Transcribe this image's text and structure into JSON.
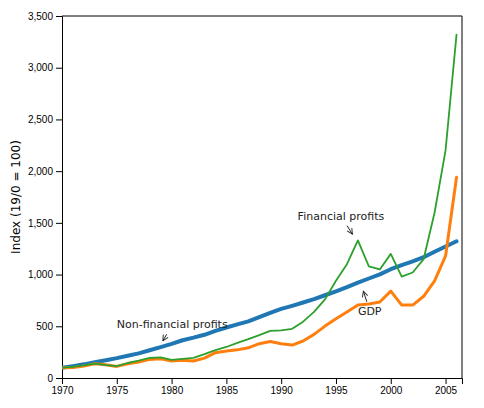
{
  "chart_data": {
    "type": "line",
    "ylabel": "Index (19/0 = 100)",
    "xlim": [
      1970,
      2006.5
    ],
    "ylim": [
      0,
      3500
    ],
    "xticks": [
      1970,
      1975,
      1980,
      1985,
      1990,
      1995,
      2000,
      2005
    ],
    "yticks": [
      0,
      500,
      {
        "value": 1000,
        "label": "1,000"
      },
      {
        "value": 1500,
        "label": "1,500"
      },
      {
        "value": 2000,
        "label": "2,000"
      },
      {
        "value": 2500,
        "label": "2,500"
      },
      {
        "value": 3000,
        "label": "3,000"
      },
      {
        "value": 3500,
        "label": "3,500"
      }
    ],
    "grid": false,
    "x": [
      1970,
      1971,
      1972,
      1973,
      1974,
      1975,
      1976,
      1977,
      1978,
      1979,
      1980,
      1981,
      1982,
      1983,
      1984,
      1985,
      1986,
      1987,
      1988,
      1989,
      1990,
      1991,
      1992,
      1993,
      1994,
      1995,
      1996,
      1997,
      1998,
      1999,
      2000,
      2001,
      2002,
      2003,
      2004,
      2005,
      2006
    ],
    "series": [
      {
        "values": [
          100,
          115,
          132,
          152,
          172,
          192,
          215,
          238,
          268,
          298,
          330,
          365,
          390,
          418,
          455,
          488,
          518,
          548,
          588,
          630,
          668,
          698,
          730,
          762,
          800,
          838,
          878,
          922,
          962,
          1002,
          1052,
          1092,
          1128,
          1168,
          1220,
          1272,
          1322
        ]
      },
      {
        "values": [
          100,
          102,
          115,
          138,
          128,
          112,
          138,
          155,
          180,
          185,
          165,
          172,
          165,
          192,
          245,
          262,
          272,
          292,
          332,
          352,
          332,
          318,
          358,
          422,
          502,
          572,
          638,
          705,
          715,
          735,
          840,
          705,
          705,
          790,
          940,
          1180,
          1940
        ]
      },
      {
        "values": [
          100,
          108,
          122,
          138,
          125,
          115,
          145,
          168,
          195,
          200,
          175,
          185,
          195,
          230,
          270,
          300,
          340,
          375,
          415,
          455,
          460,
          475,
          545,
          640,
          760,
          940,
          1100,
          1330,
          1080,
          1050,
          1200,
          980,
          1020,
          1150,
          1600,
          2200,
          3320
        ]
      }
    ],
    "annotations": [
      {
        "text": "Financial profits",
        "x": 1996.5,
        "y": 1390,
        "text_x": 1991.5,
        "text_y": 1560
      },
      {
        "text": "Non-financial profits",
        "x": 1979.2,
        "y": 360,
        "text_x": 1975.0,
        "text_y": 510
      },
      {
        "text": "GDP",
        "x": 1997.5,
        "y": 840,
        "text_x": 1997.0,
        "text_y": 640
      }
    ]
  }
}
